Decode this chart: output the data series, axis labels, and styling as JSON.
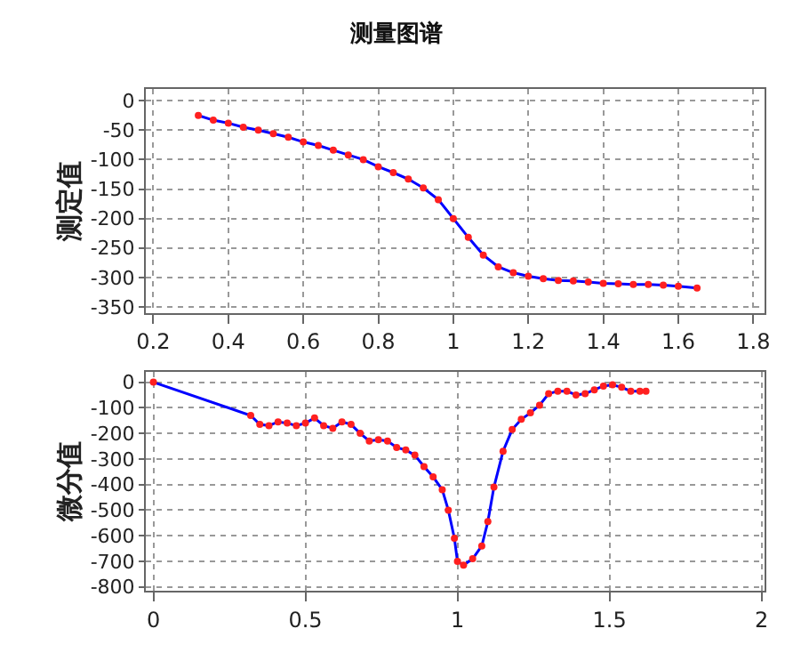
{
  "chart_data": [
    {
      "type": "line",
      "title": "测量图谱",
      "ylabel": "测定值",
      "x": [
        0.32,
        0.36,
        0.4,
        0.44,
        0.48,
        0.52,
        0.56,
        0.6,
        0.64,
        0.68,
        0.72,
        0.76,
        0.8,
        0.84,
        0.88,
        0.92,
        0.96,
        1.0,
        1.04,
        1.08,
        1.12,
        1.16,
        1.2,
        1.24,
        1.28,
        1.32,
        1.36,
        1.4,
        1.44,
        1.48,
        1.52,
        1.56,
        1.6,
        1.65
      ],
      "series": [
        {
          "color": "#0000ff",
          "values": [
            -25,
            -33,
            -38,
            -45,
            -50,
            -56,
            -62,
            -70,
            -76,
            -84,
            -92,
            -100,
            -112,
            -122,
            -133,
            -148,
            -168,
            -200,
            -232,
            -262,
            -282,
            -292,
            -298,
            -302,
            -305,
            -306,
            -308,
            -310,
            -311,
            -312,
            -312,
            -313,
            -315,
            -318
          ]
        }
      ],
      "xlim": [
        0.18,
        1.83
      ],
      "xticks": [
        0.2,
        0.4,
        0.6,
        0.8,
        1,
        1.2,
        1.4,
        1.6,
        1.8
      ],
      "ylim": [
        -360,
        20
      ],
      "yticks": [
        0,
        -50,
        -100,
        -150,
        -200,
        -250,
        -300,
        -350
      ],
      "grid": true,
      "marker": "circle",
      "line_style": "solid"
    },
    {
      "type": "line",
      "ylabel": "微分值",
      "x": [
        0,
        0.32,
        0.35,
        0.38,
        0.41,
        0.44,
        0.47,
        0.5,
        0.53,
        0.56,
        0.59,
        0.62,
        0.65,
        0.68,
        0.71,
        0.74,
        0.77,
        0.8,
        0.83,
        0.86,
        0.89,
        0.92,
        0.95,
        0.97,
        0.99,
        1.0,
        1.02,
        1.05,
        1.08,
        1.1,
        1.12,
        1.15,
        1.18,
        1.21,
        1.24,
        1.27,
        1.3,
        1.33,
        1.36,
        1.39,
        1.42,
        1.45,
        1.48,
        1.51,
        1.54,
        1.57,
        1.6,
        1.62
      ],
      "series": [
        {
          "color": "#0000ff",
          "values": [
            0,
            -130,
            -165,
            -170,
            -155,
            -160,
            -170,
            -160,
            -140,
            -170,
            -180,
            -155,
            -165,
            -200,
            -230,
            -225,
            -230,
            -255,
            -265,
            -285,
            -330,
            -370,
            -420,
            -500,
            -610,
            -700,
            -715,
            -690,
            -640,
            -545,
            -410,
            -270,
            -185,
            -145,
            -120,
            -90,
            -45,
            -35,
            -35,
            -50,
            -45,
            -30,
            -15,
            -10,
            -20,
            -35,
            -35,
            -35
          ]
        }
      ],
      "xlim": [
        -0.025,
        2.01
      ],
      "xticks": [
        0,
        0.5,
        1,
        1.5,
        2
      ],
      "ylim": [
        -815,
        40
      ],
      "yticks": [
        0,
        -100,
        -200,
        -300,
        -400,
        -500,
        -600,
        -700,
        -800
      ],
      "grid": true,
      "marker": "circle",
      "line_style": "solid"
    }
  ]
}
